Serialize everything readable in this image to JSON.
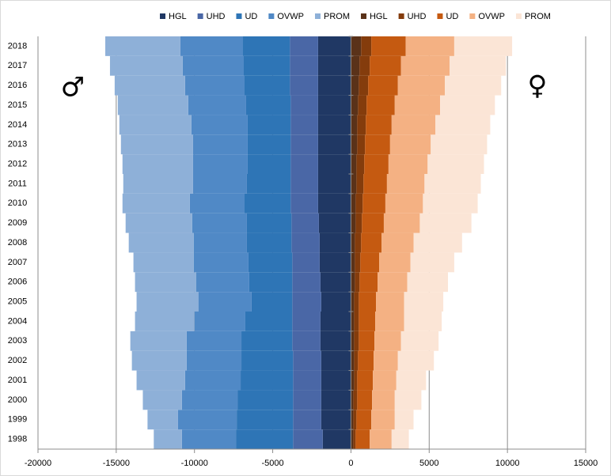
{
  "chart_data": {
    "type": "bar",
    "orientation": "horizontal",
    "stacked": true,
    "categories": [
      "1998",
      "1999",
      "2000",
      "2001",
      "2002",
      "2003",
      "2004",
      "2005",
      "2006",
      "2007",
      "2008",
      "2009",
      "2010",
      "2011",
      "2012",
      "2013",
      "2014",
      "2015",
      "2016",
      "2017",
      "2018"
    ],
    "series": [
      {
        "name": "HGL",
        "color": "#203864",
        "values": [
          -1800,
          -1900,
          -1900,
          -1900,
          -1900,
          -1950,
          -1950,
          -1900,
          -1950,
          -2000,
          -2000,
          -2050,
          -2100,
          -2100,
          -2100,
          -2100,
          -2100,
          -2100,
          -2100,
          -2100,
          -2100
        ]
      },
      {
        "name": "UHD",
        "color": "#4a67a6",
        "values": [
          -1900,
          -1800,
          -1800,
          -1800,
          -1800,
          -1800,
          -1800,
          -1850,
          -1800,
          -1750,
          -1800,
          -1750,
          -1750,
          -1750,
          -1750,
          -1750,
          -1750,
          -1750,
          -1800,
          -1800,
          -1800
        ]
      },
      {
        "name": "UD",
        "color": "#2e75b6",
        "values": [
          -3650,
          -3600,
          -3550,
          -3350,
          -3300,
          -3250,
          -3000,
          -2600,
          -2750,
          -2800,
          -2850,
          -2850,
          -2950,
          -2800,
          -2750,
          -2750,
          -2750,
          -2850,
          -2900,
          -2950,
          -3000
        ]
      },
      {
        "name": "OVWP",
        "color": "#5089c6",
        "values": [
          -3450,
          -3750,
          -3550,
          -3550,
          -3500,
          -3500,
          -3250,
          -3400,
          -3400,
          -3500,
          -3400,
          -3500,
          -3500,
          -3450,
          -3500,
          -3500,
          -3600,
          -3700,
          -3800,
          -3900,
          -4000
        ]
      },
      {
        "name": "PROM",
        "color": "#8eb0d8",
        "values": [
          -1800,
          -1950,
          -2500,
          -3100,
          -3500,
          -3600,
          -3800,
          -3950,
          -3900,
          -3850,
          -4150,
          -4250,
          -4300,
          -4450,
          -4500,
          -4600,
          -4600,
          -4500,
          -4500,
          -4650,
          -4800
        ]
      },
      {
        "name": "HGL",
        "color": "#5a3219",
        "values": [
          150,
          150,
          150,
          200,
          200,
          200,
          200,
          200,
          250,
          250,
          250,
          300,
          300,
          350,
          350,
          400,
          400,
          450,
          500,
          550,
          650
        ]
      },
      {
        "name": "UHD",
        "color": "#843c0c",
        "values": [
          150,
          200,
          250,
          200,
          250,
          300,
          300,
          300,
          300,
          350,
          400,
          400,
          450,
          450,
          500,
          500,
          550,
          550,
          600,
          650,
          650
        ]
      },
      {
        "name": "UD",
        "color": "#c55a11",
        "values": [
          900,
          950,
          950,
          1000,
          1000,
          1000,
          1050,
          1100,
          1150,
          1200,
          1300,
          1400,
          1450,
          1500,
          1550,
          1600,
          1650,
          1800,
          1900,
          2000,
          2200
        ]
      },
      {
        "name": "OVWP",
        "color": "#f4b183",
        "values": [
          1400,
          1500,
          1450,
          1500,
          1550,
          1700,
          1850,
          1800,
          1900,
          2000,
          2050,
          2300,
          2400,
          2400,
          2500,
          2600,
          2800,
          2900,
          3000,
          3100,
          3100
        ]
      },
      {
        "name": "PROM",
        "color": "#fbe5d6",
        "values": [
          1100,
          1200,
          1700,
          1900,
          2300,
          2400,
          2400,
          2500,
          2600,
          2800,
          3100,
          3300,
          3500,
          3600,
          3600,
          3600,
          3500,
          3500,
          3600,
          3600,
          3700
        ]
      }
    ],
    "xlim": [
      -20000,
      15000
    ],
    "xticks": [
      -20000,
      -15000,
      -10000,
      -5000,
      0,
      5000,
      10000,
      15000
    ],
    "grid": true,
    "legend": "top",
    "annotations": [
      "♂",
      "♀"
    ]
  }
}
